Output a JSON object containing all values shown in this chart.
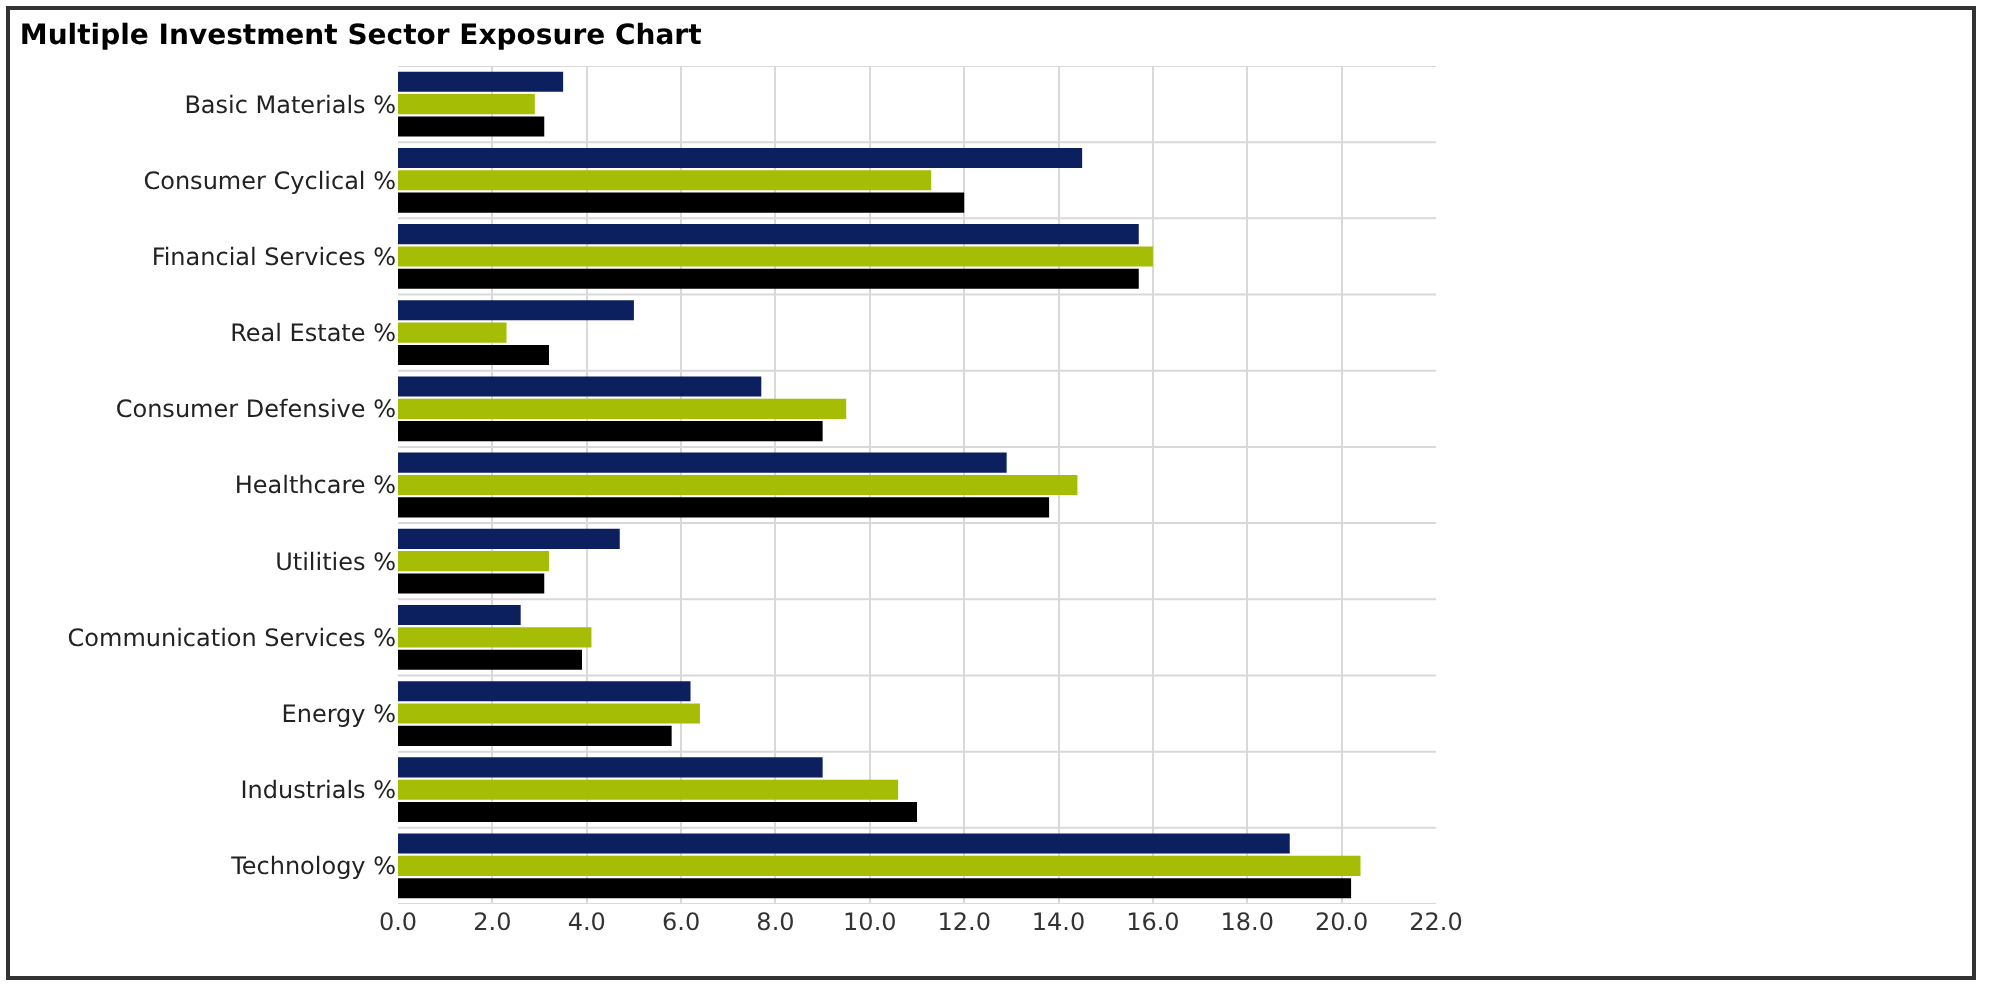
{
  "chart_data": {
    "type": "bar",
    "orientation": "horizontal",
    "title": "Multiple Investment Sector Exposure Chart",
    "categories": [
      "Basic Materials %",
      "Consumer Cyclical %",
      "Financial Services %",
      "Real Estate %",
      "Consumer Defensive %",
      "Healthcare %",
      "Utilities %",
      "Communication Services %",
      "Energy %",
      "Industrials %",
      "Technology %"
    ],
    "series": [
      {
        "color": "#0c1f5f",
        "values": [
          3.5,
          14.5,
          15.7,
          5.0,
          7.7,
          12.9,
          4.7,
          2.6,
          6.2,
          9.0,
          18.9
        ]
      },
      {
        "color": "#a5bd05",
        "values": [
          2.9,
          11.3,
          16.0,
          2.3,
          9.5,
          14.4,
          3.2,
          4.1,
          6.4,
          10.6,
          20.4
        ]
      },
      {
        "color": "#000000",
        "values": [
          3.1,
          12.0,
          15.7,
          3.2,
          9.0,
          13.8,
          3.1,
          3.9,
          5.8,
          11.0,
          20.2
        ]
      }
    ],
    "xlim": [
      0,
      22
    ],
    "xticks": [
      {
        "value": 0,
        "label": "0.0"
      },
      {
        "value": 2,
        "label": "2.0"
      },
      {
        "value": 4,
        "label": "4.0"
      },
      {
        "value": 6,
        "label": "6.0"
      },
      {
        "value": 8,
        "label": "8.0"
      },
      {
        "value": 10,
        "label": "10.0"
      },
      {
        "value": 12,
        "label": "12.0"
      },
      {
        "value": 14,
        "label": "14.0"
      },
      {
        "value": 16,
        "label": "16.0"
      },
      {
        "value": 18,
        "label": "18.0"
      },
      {
        "value": 20,
        "label": "20.0"
      },
      {
        "value": 22,
        "label": "22.0"
      }
    ],
    "grid": true
  }
}
